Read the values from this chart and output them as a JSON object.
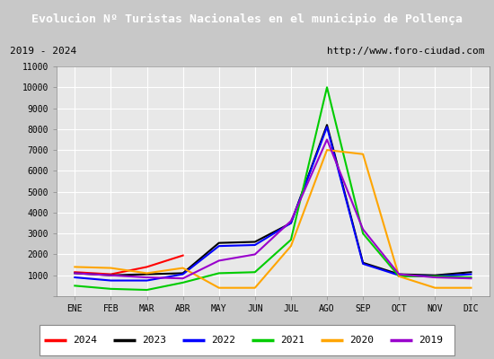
{
  "title": "Evolucion Nº Turistas Nacionales en el municipio de Pollença",
  "title_bg": "#4472c4",
  "subtitle_left": "2019 - 2024",
  "subtitle_right": "http://www.foro-ciudad.com",
  "months": [
    "ENE",
    "FEB",
    "MAR",
    "ABR",
    "MAY",
    "JUN",
    "JUL",
    "AGO",
    "SEP",
    "OCT",
    "NOV",
    "DIC"
  ],
  "ylim": [
    0,
    11000
  ],
  "yticks": [
    0,
    1000,
    2000,
    3000,
    4000,
    5000,
    6000,
    7000,
    8000,
    9000,
    10000,
    11000
  ],
  "series": {
    "2024": {
      "color": "#ff0000",
      "data": [
        1150,
        1050,
        1400,
        1950,
        null,
        null,
        null,
        null,
        null,
        null,
        null,
        null
      ]
    },
    "2023": {
      "color": "#000000",
      "data": [
        1100,
        1000,
        1050,
        1100,
        2550,
        2600,
        3500,
        8200,
        1600,
        1050,
        1000,
        1150
      ]
    },
    "2022": {
      "color": "#0000ff",
      "data": [
        900,
        750,
        750,
        1050,
        2400,
        2450,
        3500,
        8100,
        1550,
        1000,
        950,
        1050
      ]
    },
    "2021": {
      "color": "#00cc00",
      "data": [
        500,
        350,
        300,
        650,
        1100,
        1150,
        2700,
        10000,
        3000,
        950,
        950,
        900
      ]
    },
    "2020": {
      "color": "#ffa500",
      "data": [
        1400,
        1350,
        1100,
        1350,
        400,
        400,
        2400,
        7000,
        6800,
        950,
        400,
        400
      ]
    },
    "2019": {
      "color": "#9900cc",
      "data": [
        1100,
        1000,
        900,
        850,
        1700,
        2000,
        3600,
        7500,
        3200,
        1050,
        900,
        850
      ]
    }
  },
  "legend_order": [
    "2024",
    "2023",
    "2022",
    "2021",
    "2020",
    "2019"
  ],
  "fig_bg": "#c8c8c8",
  "plot_bg": "#e8e8e8",
  "grid_color": "#ffffff",
  "font_family": "DejaVu Sans Mono"
}
